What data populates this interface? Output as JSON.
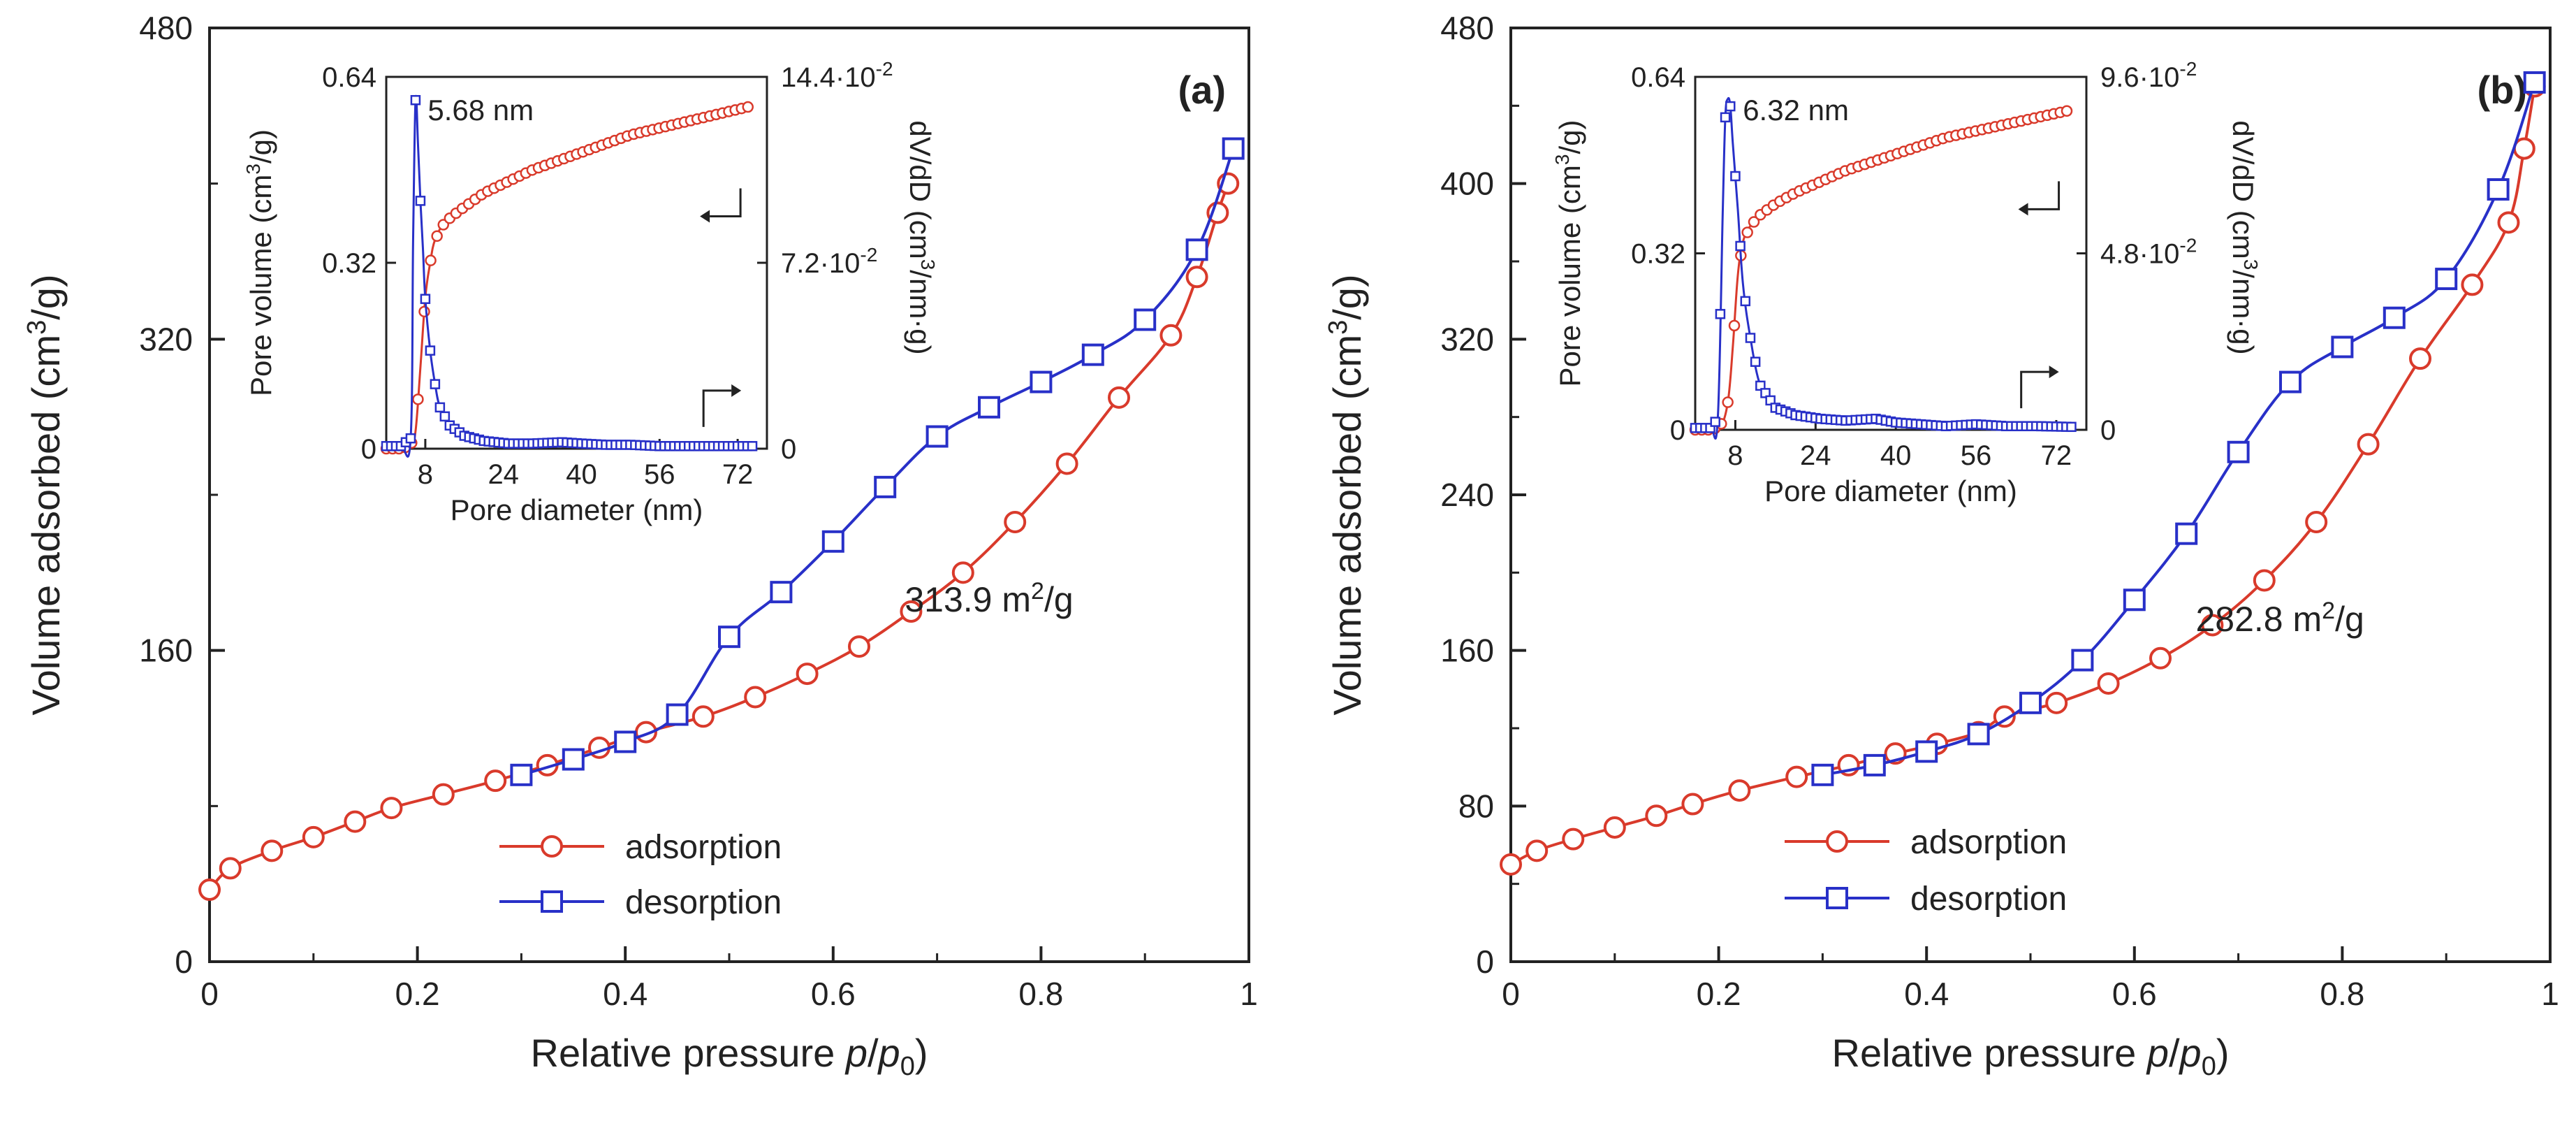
{
  "colors": {
    "adsorption": "#d93a2b",
    "desorption": "#2830c8",
    "axis": "#222222",
    "background": "#ffffff"
  },
  "chart_data": [
    {
      "type": "line",
      "panel_label": "(a)",
      "title": "",
      "xlabel_main": "Relative pressure ",
      "xlabel_var": "p",
      "xlabel_sep": "/",
      "xlabel_var0": "p",
      "xlabel_sub": "0",
      "ylabel_main": "Volume adsorbed (cm",
      "ylabel_sup": "3",
      "ylabel_end": "/g)",
      "xlim": [
        0,
        1
      ],
      "ylim": [
        0,
        480
      ],
      "xticks": [
        "0",
        "0.2",
        "0.4",
        "0.6",
        "0.8",
        "1"
      ],
      "xtick_values": [
        0,
        0.2,
        0.4,
        0.6,
        0.8,
        1
      ],
      "yticks": [
        "0",
        "160",
        "320",
        "480"
      ],
      "ytick_values": [
        0,
        160,
        320,
        480
      ],
      "annotation_value": "313.9",
      "annotation_unit": "m",
      "annotation_sup": "2",
      "annotation_end": "/g",
      "annotation_at": [
        0.75,
        180
      ],
      "legend": [
        "adsorption",
        "desorption"
      ],
      "series": [
        {
          "name": "adsorption",
          "marker": "circle",
          "x": [
            0.0,
            0.02,
            0.06,
            0.1,
            0.14,
            0.175,
            0.225,
            0.275,
            0.325,
            0.375,
            0.42,
            0.475,
            0.525,
            0.575,
            0.625,
            0.675,
            0.725,
            0.775,
            0.825,
            0.875,
            0.925,
            0.95,
            0.97,
            0.98
          ],
          "y": [
            37,
            48,
            57,
            64,
            72,
            79,
            86,
            93,
            101,
            110,
            118,
            126,
            136,
            148,
            162,
            180,
            200,
            226,
            256,
            290,
            322,
            352,
            385,
            400
          ]
        },
        {
          "name": "desorption",
          "marker": "square",
          "x": [
            0.3,
            0.35,
            0.4,
            0.45,
            0.5,
            0.55,
            0.6,
            0.65,
            0.7,
            0.75,
            0.8,
            0.85,
            0.9,
            0.95,
            0.985
          ],
          "y": [
            96,
            104,
            113,
            127,
            167,
            190,
            216,
            244,
            270,
            285,
            298,
            312,
            330,
            366,
            418
          ]
        }
      ],
      "inset": {
        "xlabel": "Pore diameter (nm)",
        "ylabel_left_main": "Pore volume (cm",
        "ylabel_left_sup": "3",
        "ylabel_left_end": "/g)",
        "ylabel_right_pre": "dV/dD (cm",
        "ylabel_right_sup": "3",
        "ylabel_right_end": "/nm·g)",
        "xlim": [
          0,
          78
        ],
        "ylim_left": [
          0,
          0.64
        ],
        "ylim_right": [
          0,
          0.144
        ],
        "xticks": [
          "8",
          "24",
          "40",
          "56",
          "72"
        ],
        "xtick_values": [
          8,
          24,
          40,
          56,
          72
        ],
        "yticks_left": [
          "0",
          "0.32",
          "0.64"
        ],
        "ytick_left_values": [
          0,
          0.32,
          0.64
        ],
        "yticks_right": [
          "0",
          "7.2·10",
          "14.4·10"
        ],
        "yticks_right_exp": [
          "",
          "-2",
          "-2"
        ],
        "ytick_right_values": [
          0,
          0.072,
          0.144
        ],
        "peak_label": "5.68 nm",
        "pore_volume_curve": [
          [
            0,
            0
          ],
          [
            3,
            0
          ],
          [
            5,
            0.005
          ],
          [
            6,
            0.03
          ],
          [
            7,
            0.14
          ],
          [
            8,
            0.26
          ],
          [
            9,
            0.32
          ],
          [
            10,
            0.36
          ],
          [
            12,
            0.39
          ],
          [
            15,
            0.41
          ],
          [
            20,
            0.44
          ],
          [
            25,
            0.46
          ],
          [
            30,
            0.48
          ],
          [
            40,
            0.51
          ],
          [
            50,
            0.54
          ],
          [
            60,
            0.56
          ],
          [
            70,
            0.58
          ],
          [
            75,
            0.59
          ]
        ],
        "dvdd_curve": [
          [
            0,
            0.001
          ],
          [
            3,
            0.001
          ],
          [
            5,
            0.004
          ],
          [
            5.5,
            0.08
          ],
          [
            6,
            0.135
          ],
          [
            6.5,
            0.118
          ],
          [
            7,
            0.096
          ],
          [
            7.5,
            0.078
          ],
          [
            8,
            0.058
          ],
          [
            9,
            0.038
          ],
          [
            10,
            0.025
          ],
          [
            11,
            0.016
          ],
          [
            13,
            0.009
          ],
          [
            16,
            0.005
          ],
          [
            20,
            0.003
          ],
          [
            25,
            0.002
          ],
          [
            30,
            0.002
          ],
          [
            36,
            0.0025
          ],
          [
            40,
            0.002
          ],
          [
            45,
            0.0015
          ],
          [
            50,
            0.0015
          ],
          [
            56,
            0.001
          ],
          [
            62,
            0.001
          ],
          [
            68,
            0.001
          ],
          [
            75,
            0.001
          ]
        ]
      }
    },
    {
      "type": "line",
      "panel_label": "(b)",
      "title": "",
      "xlabel_main": "Relative pressure ",
      "xlabel_var": "p",
      "xlabel_sep": "/",
      "xlabel_var0": "p",
      "xlabel_sub": "0",
      "ylabel_main": "Volume adsorbed (cm",
      "ylabel_sup": "3",
      "ylabel_end": "/g)",
      "xlim": [
        0,
        1
      ],
      "ylim": [
        0,
        480
      ],
      "xticks": [
        "0",
        "0.2",
        "0.4",
        "0.6",
        "0.8",
        "1"
      ],
      "xtick_values": [
        0,
        0.2,
        0.4,
        0.6,
        0.8,
        1
      ],
      "yticks": [
        "0",
        "80",
        "160",
        "240",
        "320",
        "400",
        "480"
      ],
      "ytick_values": [
        0,
        80,
        160,
        240,
        320,
        400,
        480
      ],
      "annotation_value": "282.8",
      "annotation_unit": "m",
      "annotation_sup": "2",
      "annotation_end": "/g",
      "annotation_at": [
        0.74,
        170
      ],
      "legend": [
        "adsorption",
        "desorption"
      ],
      "series": [
        {
          "name": "adsorption",
          "marker": "circle",
          "x": [
            0.0,
            0.025,
            0.06,
            0.1,
            0.14,
            0.175,
            0.22,
            0.275,
            0.325,
            0.37,
            0.41,
            0.45,
            0.475,
            0.525,
            0.575,
            0.625,
            0.675,
            0.725,
            0.775,
            0.825,
            0.875,
            0.925,
            0.96,
            0.975,
            0.985
          ],
          "y": [
            50,
            57,
            63,
            69,
            75,
            81,
            88,
            95,
            101,
            107,
            112,
            118,
            126,
            133,
            143,
            156,
            173,
            196,
            226,
            266,
            310,
            348,
            380,
            418,
            450
          ]
        },
        {
          "name": "desorption",
          "marker": "square",
          "x": [
            0.3,
            0.35,
            0.4,
            0.45,
            0.5,
            0.55,
            0.6,
            0.65,
            0.7,
            0.75,
            0.8,
            0.85,
            0.9,
            0.95,
            0.985
          ],
          "y": [
            96,
            101,
            108,
            117,
            133,
            155,
            186,
            220,
            262,
            298,
            316,
            331,
            351,
            397,
            452
          ]
        }
      ],
      "inset": {
        "xlabel": "Pore diameter (nm)",
        "ylabel_left_main": "Pore volume (cm",
        "ylabel_left_sup": "3",
        "ylabel_left_end": "/g)",
        "ylabel_right_pre": "dV/dD (cm",
        "ylabel_right_sup": "3",
        "ylabel_right_end": "/nm·g)",
        "xlim": [
          0,
          78
        ],
        "ylim_left": [
          0,
          0.64
        ],
        "ylim_right": [
          0,
          0.096
        ],
        "xticks": [
          "8",
          "24",
          "40",
          "56",
          "72"
        ],
        "xtick_values": [
          8,
          24,
          40,
          56,
          72
        ],
        "yticks_left": [
          "0",
          "0.32",
          "0.64"
        ],
        "ytick_left_values": [
          0,
          0.32,
          0.64
        ],
        "yticks_right": [
          "0",
          "4.8·10",
          "9.6·10"
        ],
        "yticks_right_exp": [
          "",
          "-2",
          "-2"
        ],
        "ytick_right_values": [
          0,
          0.048,
          0.096
        ],
        "peak_label": "6.32 nm",
        "pore_volume_curve": [
          [
            0,
            0
          ],
          [
            3,
            0
          ],
          [
            5,
            0.005
          ],
          [
            6.5,
            0.05
          ],
          [
            7.5,
            0.15
          ],
          [
            8.5,
            0.28
          ],
          [
            9.5,
            0.34
          ],
          [
            11,
            0.37
          ],
          [
            13,
            0.39
          ],
          [
            16,
            0.41
          ],
          [
            20,
            0.43
          ],
          [
            25,
            0.45
          ],
          [
            30,
            0.47
          ],
          [
            40,
            0.5
          ],
          [
            50,
            0.53
          ],
          [
            60,
            0.55
          ],
          [
            70,
            0.57
          ],
          [
            75,
            0.58
          ]
        ],
        "dvdd_curve": [
          [
            0,
            0.0005
          ],
          [
            3,
            0.0005
          ],
          [
            4.5,
            0.003
          ],
          [
            5.5,
            0.06
          ],
          [
            6,
            0.085
          ],
          [
            6.5,
            0.09
          ],
          [
            7,
            0.088
          ],
          [
            7.5,
            0.078
          ],
          [
            8.5,
            0.06
          ],
          [
            9.5,
            0.04
          ],
          [
            11,
            0.025
          ],
          [
            13,
            0.012
          ],
          [
            16,
            0.006
          ],
          [
            20,
            0.004
          ],
          [
            25,
            0.003
          ],
          [
            30,
            0.0025
          ],
          [
            36,
            0.003
          ],
          [
            40,
            0.002
          ],
          [
            45,
            0.0015
          ],
          [
            50,
            0.001
          ],
          [
            56,
            0.0015
          ],
          [
            62,
            0.001
          ],
          [
            68,
            0.001
          ],
          [
            75,
            0.0008
          ]
        ]
      }
    }
  ]
}
